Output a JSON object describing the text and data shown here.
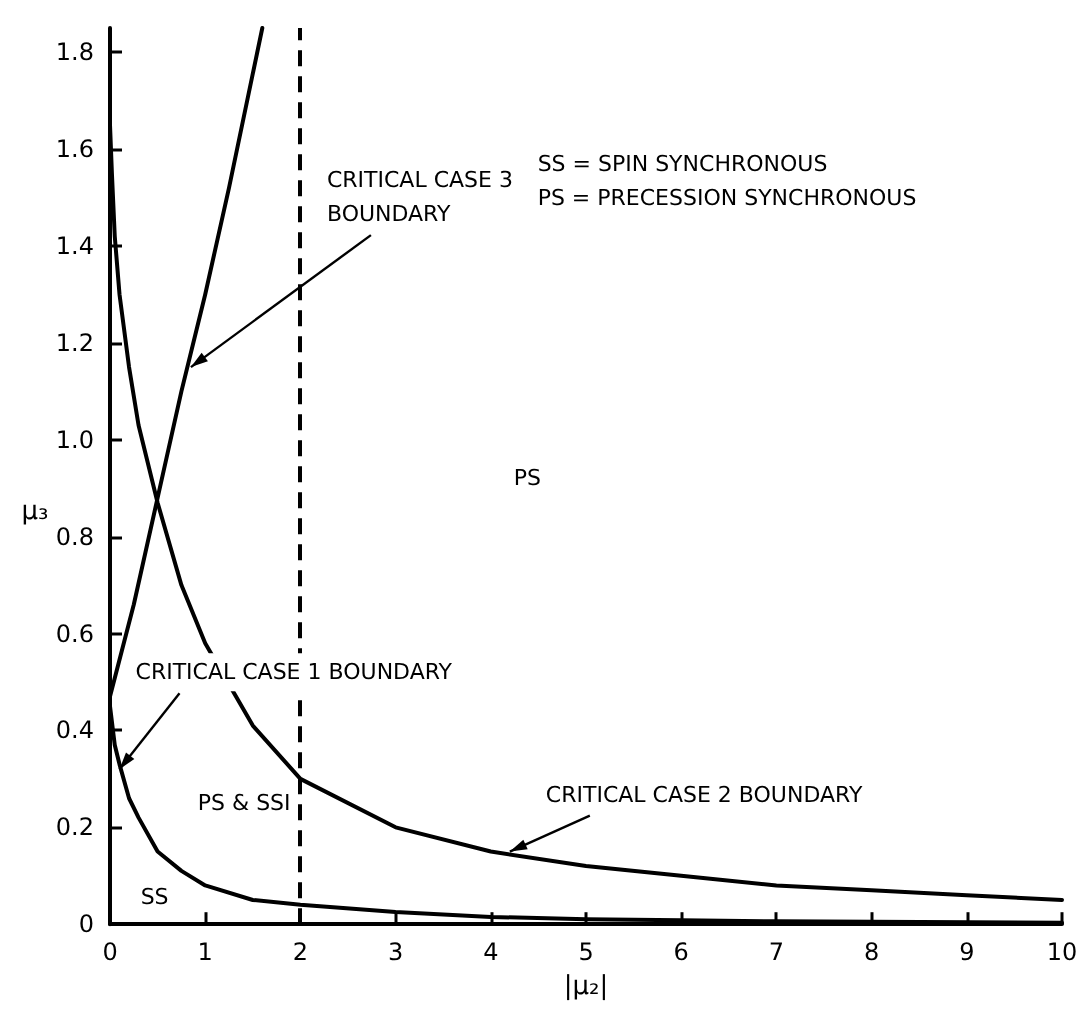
{
  "chart_data": {
    "type": "line",
    "xlabel": "|μ₂|",
    "ylabel": "μ₃",
    "xlim": [
      0,
      10
    ],
    "ylim": [
      0,
      1.85
    ],
    "xticks": [
      0,
      1,
      2,
      3,
      4,
      5,
      6,
      7,
      8,
      9,
      10
    ],
    "yticks": [
      0,
      0.2,
      0.4,
      0.6,
      0.8,
      {
        "value": 1,
        "label": "1.0"
      },
      1.2,
      1.4,
      1.6,
      1.8
    ],
    "grid": false,
    "marker": "none",
    "line_style": "solid",
    "series": [
      {
        "color": "#000000",
        "x": [
          0,
          0.05,
          0.1,
          0.2,
          0.3,
          0.5,
          0.75,
          1,
          1.5,
          2,
          3,
          4,
          5,
          6,
          7,
          8,
          10
        ],
        "values": [
          0.45,
          0.37,
          0.33,
          0.26,
          0.22,
          0.15,
          0.11,
          0.08,
          0.05,
          0.04,
          0.025,
          0.015,
          0.01,
          0.008,
          0.006,
          0.005,
          0.003
        ]
      },
      {
        "color": "#000000",
        "x": [
          0,
          0.02,
          0.05,
          0.1,
          0.2,
          0.3,
          0.5,
          0.75,
          1,
          1.5,
          2,
          3,
          4,
          5,
          6,
          7,
          8,
          9,
          10
        ],
        "values": [
          1.65,
          1.55,
          1.42,
          1.3,
          1.15,
          1.03,
          0.87,
          0.7,
          0.58,
          0.41,
          0.3,
          0.2,
          0.15,
          0.12,
          0.1,
          0.08,
          0.07,
          0.06,
          0.05
        ]
      },
      {
        "color": "#000000",
        "x": [
          0,
          0.25,
          0.5,
          0.75,
          1,
          1.25,
          1.6
        ],
        "values": [
          0.47,
          0.66,
          0.88,
          1.1,
          1.3,
          1.52,
          1.85
        ]
      }
    ],
    "ref_lines": [
      {
        "axis": "x",
        "value": 2,
        "line_style": "dashed",
        "color": "#000000"
      }
    ],
    "annotations": [
      {
        "text": "CRITICAL CASE 3\nBOUNDARY",
        "x": 0.85,
        "y": 1.15
      },
      {
        "text": "CRITICAL CASE 1 BOUNDARY",
        "x": 0.1,
        "y": 0.32
      },
      {
        "text": "CRITICAL CASE 2 BOUNDARY",
        "x": 4.2,
        "y": 0.15
      },
      "SS = SPIN SYNCHRONOUS\nPS = PRECESSION SYNCHRONOUS",
      "PS",
      "PS & SSI",
      "SS"
    ]
  }
}
